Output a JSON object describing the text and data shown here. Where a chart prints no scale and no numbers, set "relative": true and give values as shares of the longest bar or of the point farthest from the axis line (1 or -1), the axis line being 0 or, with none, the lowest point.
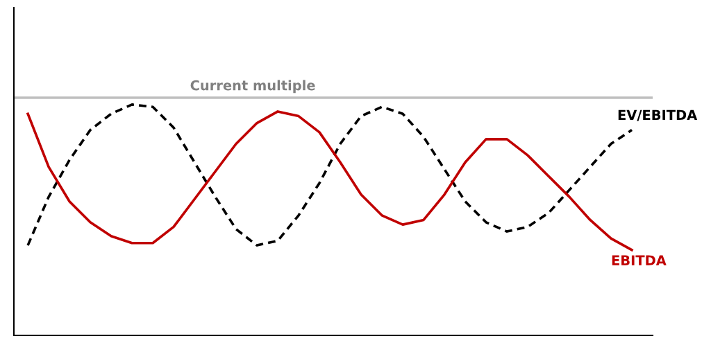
{
  "chart_data": {
    "type": "line",
    "relative": true,
    "categories": [
      null,
      null,
      null,
      null,
      null,
      null,
      null,
      null,
      null,
      null,
      null,
      null,
      null,
      null,
      null,
      null,
      null,
      null,
      null,
      null,
      null,
      null,
      null,
      null,
      null,
      null,
      null,
      null,
      null,
      null
    ],
    "series": [
      {
        "name": "EV/EBITDA",
        "color": "#000000",
        "line_style": "dashed",
        "values": [
          0.39,
          0.6,
          0.76,
          0.89,
          0.96,
          1.0,
          0.99,
          0.9,
          0.75,
          0.6,
          0.46,
          0.39,
          0.41,
          0.52,
          0.66,
          0.83,
          0.95,
          0.99,
          0.96,
          0.86,
          0.72,
          0.58,
          0.49,
          0.45,
          0.47,
          0.53,
          0.63,
          0.73,
          0.83,
          0.89
        ]
      },
      {
        "name": "EBITDA",
        "color": "#c00000",
        "line_style": "solid",
        "values": [
          0.96,
          0.73,
          0.58,
          0.49,
          0.43,
          0.4,
          0.4,
          0.47,
          0.59,
          0.71,
          0.83,
          0.92,
          0.97,
          0.95,
          0.88,
          0.75,
          0.61,
          0.52,
          0.48,
          0.5,
          0.61,
          0.75,
          0.85,
          0.85,
          0.78,
          0.69,
          0.6,
          0.5,
          0.42,
          0.37
        ]
      }
    ],
    "ref_lines": [
      {
        "axis": "y",
        "value": 1.03,
        "label": "Current multiple",
        "color": "#bfbfbf",
        "line_style": "solid"
      }
    ]
  }
}
